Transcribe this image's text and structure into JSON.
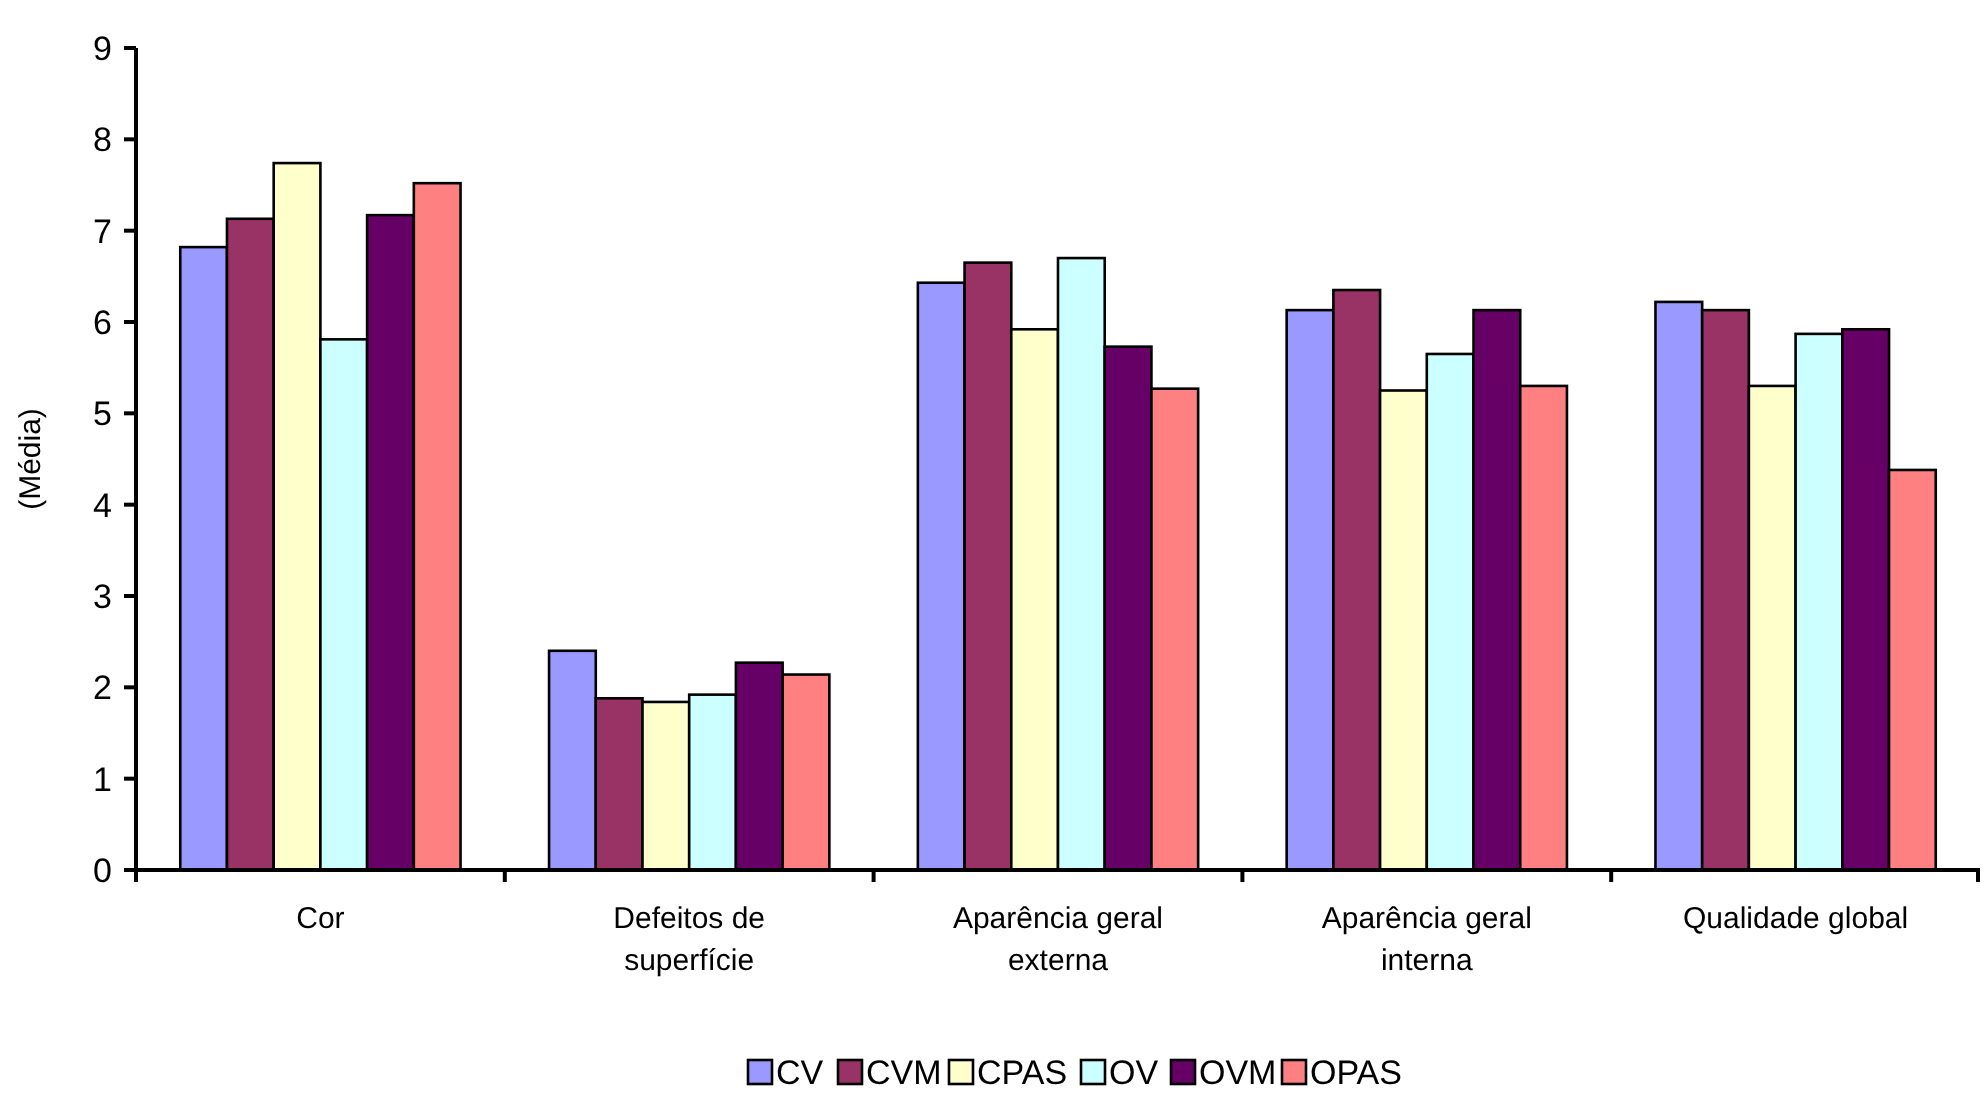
{
  "chart_data": {
    "type": "bar",
    "ylabel": "(Média)",
    "categories": [
      "Cor",
      "Defeitos de superfície",
      "Aparência geral externa",
      "Aparência geral interna",
      "Qualidade global"
    ],
    "series": [
      {
        "name": "CV",
        "color": "#9999ff",
        "values": [
          6.82,
          2.4,
          6.43,
          6.13,
          6.22
        ]
      },
      {
        "name": "CVM",
        "color": "#993366",
        "values": [
          7.13,
          1.88,
          6.65,
          6.35,
          6.13
        ]
      },
      {
        "name": "CPAS",
        "color": "#ffffcc",
        "values": [
          7.74,
          1.84,
          5.92,
          5.25,
          5.3
        ]
      },
      {
        "name": "OV",
        "color": "#ccffff",
        "values": [
          5.81,
          1.92,
          6.7,
          5.65,
          5.87
        ]
      },
      {
        "name": "OVM",
        "color": "#660066",
        "values": [
          7.17,
          2.27,
          5.73,
          6.13,
          5.92
        ]
      },
      {
        "name": "OPAS",
        "color": "#ff8080",
        "values": [
          7.52,
          2.14,
          5.27,
          5.3,
          4.38
        ]
      }
    ],
    "ylim": [
      0,
      9
    ],
    "yticks": [
      0,
      1,
      2,
      3,
      4,
      5,
      6,
      7,
      8,
      9
    ],
    "grid": false,
    "legend": "bottom"
  }
}
